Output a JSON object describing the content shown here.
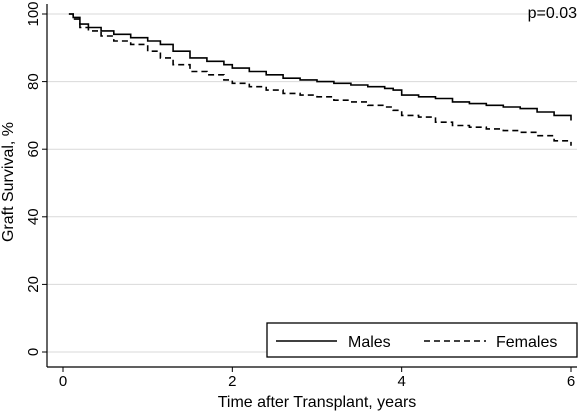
{
  "chart_data": {
    "type": "line",
    "xlabel": "Time after Transplant, years",
    "ylabel": "Graft Survival, %",
    "annotation": "p=0.03",
    "xlim": [
      0,
      6
    ],
    "ylim": [
      0,
      100
    ],
    "xticks": [
      0,
      2,
      4,
      6
    ],
    "yticks": [
      0,
      20,
      40,
      60,
      80,
      100
    ],
    "grid": "horizontal",
    "legend_position": "bottom-right",
    "series": [
      {
        "name": "Males",
        "line_style": "solid",
        "x": [
          0.07,
          0.12,
          0.2,
          0.3,
          0.45,
          0.6,
          0.8,
          1.0,
          1.15,
          1.3,
          1.5,
          1.7,
          1.9,
          2.0,
          2.2,
          2.4,
          2.6,
          2.8,
          3.0,
          3.2,
          3.4,
          3.6,
          3.8,
          3.9,
          4.0,
          4.2,
          4.4,
          4.6,
          4.8,
          5.0,
          5.2,
          5.4,
          5.6,
          5.8,
          6.0
        ],
        "y": [
          100,
          99,
          97,
          96,
          95,
          94,
          93,
          92,
          91,
          89,
          87,
          86,
          85,
          84,
          83,
          82,
          81,
          80.5,
          80,
          79.5,
          79,
          78.5,
          78,
          77.5,
          76,
          75.5,
          75,
          74,
          73.5,
          73,
          72.5,
          72,
          71,
          70,
          68.5
        ]
      },
      {
        "name": "Females",
        "line_style": "dashed",
        "x": [
          0.07,
          0.12,
          0.2,
          0.3,
          0.45,
          0.6,
          0.8,
          1.0,
          1.15,
          1.3,
          1.5,
          1.7,
          1.9,
          2.0,
          2.2,
          2.4,
          2.6,
          2.8,
          3.0,
          3.2,
          3.4,
          3.6,
          3.8,
          3.9,
          4.0,
          4.2,
          4.4,
          4.6,
          4.8,
          5.0,
          5.2,
          5.4,
          5.6,
          5.8,
          6.0
        ],
        "y": [
          100,
          98.5,
          96,
          95,
          93.5,
          92,
          91,
          89,
          87,
          85,
          83,
          82,
          80.5,
          79.5,
          78.5,
          77.5,
          76.5,
          76,
          75.5,
          74.5,
          74,
          73,
          72.5,
          71.5,
          70,
          69.5,
          68,
          67,
          66.5,
          66,
          65.5,
          65,
          64,
          62.5,
          61
        ]
      }
    ]
  }
}
